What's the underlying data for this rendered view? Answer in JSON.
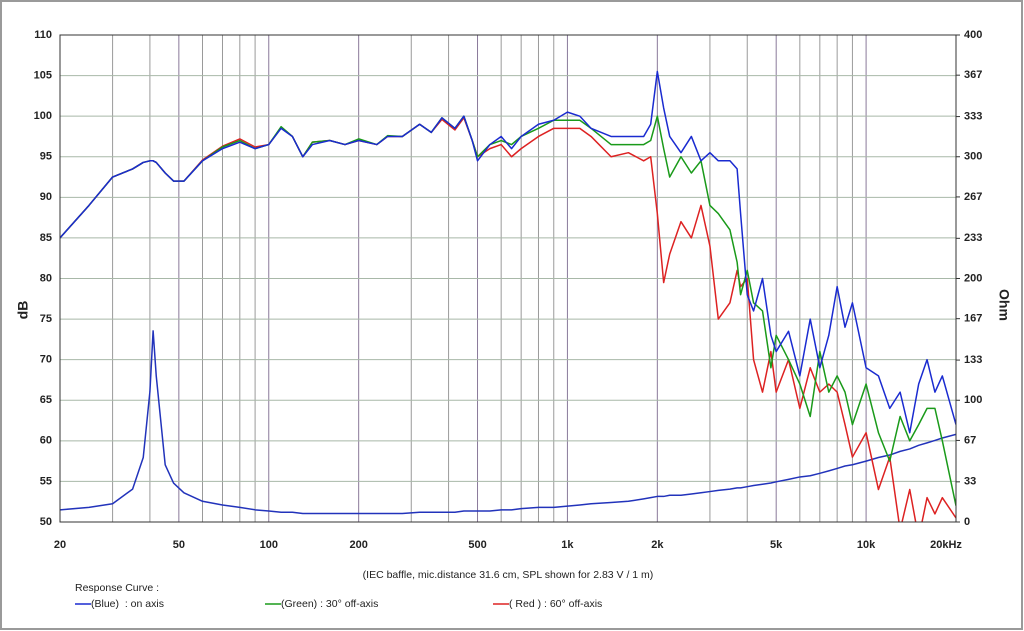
{
  "chart_data": {
    "type": "line",
    "xscale": "log",
    "y_label": "dB",
    "y2_label": "Ohm",
    "caption": "(IEC baffle, mic.distance 31.6 cm, SPL shown for 2.83 V / 1 m)",
    "legend_title": "Response Curve :",
    "xlim": [
      20,
      20000
    ],
    "xticks": [
      20,
      50,
      100,
      200,
      500,
      {
        "value": 1000,
        "label": "1k"
      },
      {
        "value": 2000,
        "label": "2k"
      },
      {
        "value": 5000,
        "label": "5k"
      },
      {
        "value": 10000,
        "label": "10k"
      },
      {
        "value": 20000,
        "label": "20kHz"
      }
    ],
    "xminor": [
      30,
      40,
      60,
      70,
      80,
      90,
      300,
      400,
      600,
      700,
      800,
      900,
      3000,
      4000,
      6000,
      7000,
      8000,
      9000
    ],
    "ylim": [
      50,
      110
    ],
    "yticks": [
      50,
      55,
      60,
      65,
      70,
      75,
      80,
      85,
      90,
      95,
      100,
      105,
      110
    ],
    "y2lim": [
      0,
      400
    ],
    "y2ticks": [
      0,
      33,
      67,
      100,
      133,
      167,
      200,
      233,
      267,
      300,
      333,
      367,
      400
    ],
    "grid": true,
    "x": [
      20,
      25,
      30,
      35,
      38,
      40,
      41,
      42,
      45,
      48,
      52,
      60,
      70,
      80,
      90,
      100,
      110,
      120,
      130,
      140,
      160,
      180,
      200,
      230,
      250,
      280,
      320,
      350,
      380,
      420,
      450,
      480,
      500,
      550,
      600,
      650,
      700,
      800,
      900,
      1000,
      1100,
      1200,
      1400,
      1600,
      1800,
      1900,
      2000,
      2100,
      2200,
      2400,
      2600,
      2800,
      3000,
      3200,
      3500,
      3700,
      3800,
      4000,
      4200,
      4500,
      4800,
      5000,
      5500,
      6000,
      6500,
      7000,
      7500,
      8000,
      8500,
      9000,
      10000,
      11000,
      12000,
      13000,
      14000,
      15000,
      16000,
      17000,
      18000,
      20000
    ],
    "series": [
      {
        "name": "(Blue)  : on axis",
        "color": "#1a2bd0",
        "values": [
          85,
          89,
          92.5,
          93.5,
          94.3,
          94.5,
          94.5,
          94.3,
          93,
          92,
          92,
          94.5,
          96,
          96.8,
          96,
          96.5,
          98.5,
          97.5,
          95,
          96.5,
          97,
          96.5,
          97,
          96.5,
          97.5,
          97.5,
          99,
          98,
          99.8,
          98.5,
          100,
          97,
          94.5,
          96.5,
          97.5,
          96,
          97.5,
          99,
          99.5,
          100.5,
          100,
          98.5,
          97.5,
          97.5,
          97.5,
          99,
          105.5,
          101,
          97.5,
          95.5,
          97.5,
          94.5,
          95.5,
          94.5,
          94.5,
          93.5,
          88,
          78,
          76,
          80,
          73,
          71,
          73.5,
          68,
          75,
          69,
          73,
          79,
          74,
          77,
          69,
          68,
          64,
          66,
          61,
          67,
          70,
          66,
          68,
          62
        ]
      },
      {
        "name": "(Green) : 30° off-axis",
        "color": "#1a9a1a",
        "values": [
          85,
          89,
          92.5,
          93.5,
          94.3,
          94.5,
          94.5,
          94.3,
          93,
          92,
          92,
          94.5,
          96.2,
          97,
          96,
          96.5,
          98.7,
          97.5,
          95,
          96.8,
          97,
          96.5,
          97.2,
          96.5,
          97.6,
          97.5,
          99,
          98,
          99.8,
          98.5,
          100,
          97,
          95,
          96.5,
          97,
          96.5,
          97.5,
          98.5,
          99.5,
          99.5,
          99.5,
          98.5,
          96.5,
          96.5,
          96.5,
          97,
          100,
          96,
          92.5,
          95,
          93,
          94.5,
          89,
          88,
          86,
          82,
          78,
          81,
          77,
          76,
          69,
          73,
          70,
          67,
          63,
          71,
          66,
          68,
          66,
          62,
          67,
          61,
          57.5,
          63,
          60,
          62,
          64,
          64,
          60,
          52
        ]
      },
      {
        "name": "( Red ) : 60° off-axis",
        "color": "#dd2222",
        "values": [
          85,
          89,
          92.5,
          93.5,
          94.3,
          94.5,
          94.5,
          94.3,
          93,
          92,
          92,
          94.6,
          96.3,
          97.2,
          96.2,
          96.5,
          98.6,
          97.5,
          95,
          96.8,
          97,
          96.5,
          97,
          96.5,
          97.5,
          97.5,
          99,
          98,
          99.6,
          98.3,
          99.8,
          97,
          95,
          96,
          96.5,
          95,
          96,
          97.5,
          98.5,
          98.5,
          98.5,
          97.5,
          95,
          95.5,
          94.5,
          95,
          88,
          79.5,
          83,
          87,
          85,
          89,
          84,
          75,
          77,
          81,
          79,
          80,
          70,
          66,
          71,
          66,
          70,
          64,
          69,
          66,
          67,
          66,
          62,
          58,
          61,
          54,
          58,
          49,
          54,
          48,
          53,
          51,
          53,
          50.5
        ]
      },
      {
        "color": "#2233bb",
        "axis": "y2",
        "values": [
          10,
          12,
          15,
          27,
          53,
          107,
          157,
          120,
          47,
          32,
          24,
          17,
          14,
          12,
          10,
          9,
          8,
          8,
          7,
          7,
          7,
          7,
          7,
          7,
          7,
          7,
          8,
          8,
          8,
          8,
          9,
          9,
          9,
          9,
          10,
          10,
          11,
          12,
          12,
          13,
          14,
          15,
          16,
          17,
          19,
          20,
          21,
          21,
          22,
          22,
          23,
          24,
          25,
          26,
          27,
          28,
          28,
          29,
          30,
          31,
          32,
          33,
          35,
          37,
          38,
          40,
          42,
          44,
          46,
          47,
          50,
          53,
          55,
          58,
          60,
          63,
          65,
          67,
          69,
          72
        ]
      }
    ]
  }
}
